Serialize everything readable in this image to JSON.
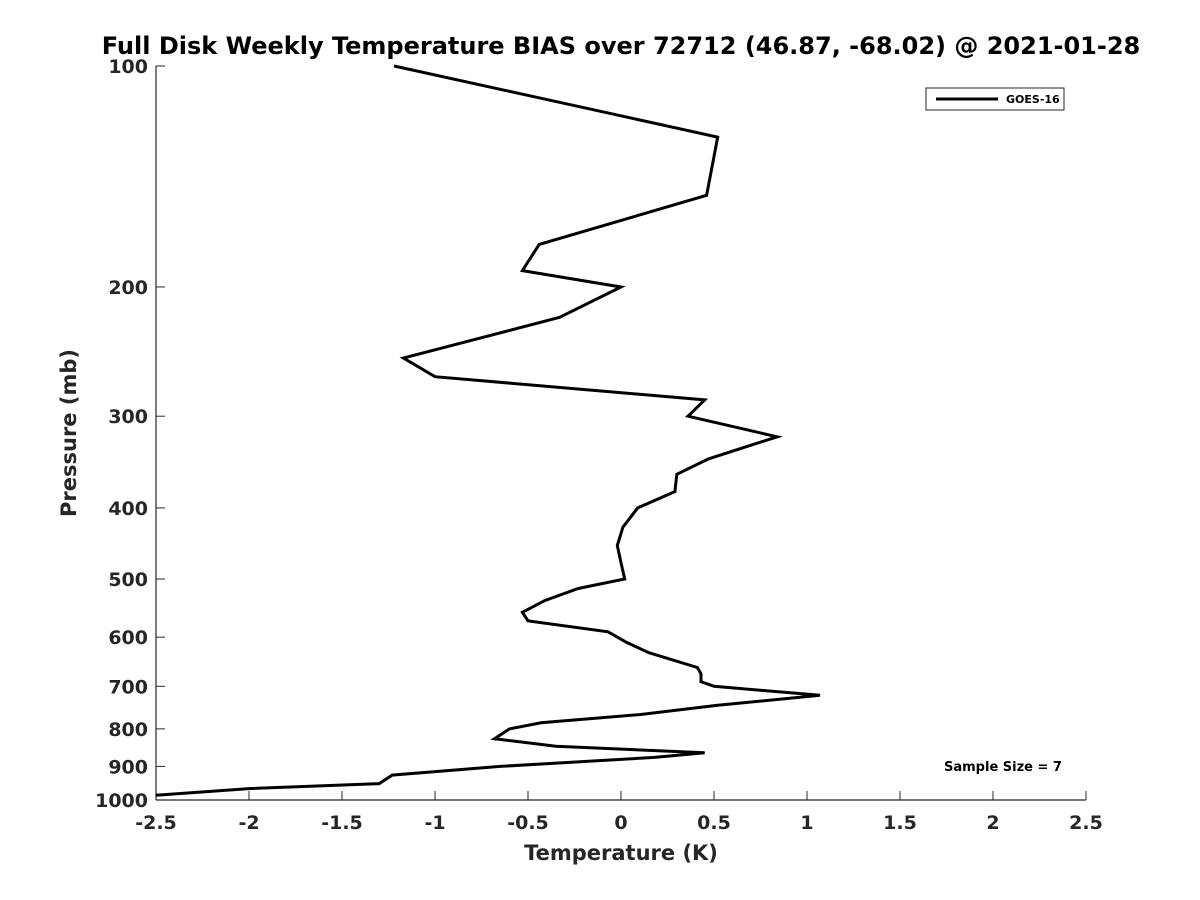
{
  "chart_data": {
    "type": "line",
    "title": "Full Disk Weekly Temperature BIAS over 72712 (46.87, -68.02) @ 2021-01-28",
    "xlabel": "Temperature (K)",
    "ylabel": "Pressure (mb)",
    "xlim": [
      -2.5,
      2.5
    ],
    "ylim": [
      1000,
      100
    ],
    "y_scale": "log",
    "x_ticks": [
      "-2.5",
      "-2",
      "-1.5",
      "-1",
      "-0.5",
      "0",
      "0.5",
      "1",
      "1.5",
      "2",
      "2.5"
    ],
    "x_tick_values": [
      -2.5,
      -2,
      -1.5,
      -1,
      -0.5,
      0,
      0.5,
      1,
      1.5,
      2,
      2.5
    ],
    "y_ticks": [
      "100",
      "200",
      "300",
      "400",
      "500",
      "600",
      "700",
      "800",
      "900",
      "1000"
    ],
    "y_tick_values": [
      100,
      200,
      300,
      400,
      500,
      600,
      700,
      800,
      900,
      1000
    ],
    "legend_position": "top-right",
    "series": [
      {
        "name": "GOES-16",
        "color": "#000000",
        "points": [
          {
            "t": -1.22,
            "p": 100
          },
          {
            "t": 0.52,
            "p": 125
          },
          {
            "t": 0.46,
            "p": 150
          },
          {
            "t": -0.44,
            "p": 175
          },
          {
            "t": -0.53,
            "p": 190
          },
          {
            "t": 0.0,
            "p": 200
          },
          {
            "t": -0.33,
            "p": 220
          },
          {
            "t": -1.17,
            "p": 250
          },
          {
            "t": -1.0,
            "p": 265
          },
          {
            "t": 0.45,
            "p": 285
          },
          {
            "t": 0.36,
            "p": 300
          },
          {
            "t": 0.84,
            "p": 320
          },
          {
            "t": 0.47,
            "p": 343
          },
          {
            "t": 0.3,
            "p": 360
          },
          {
            "t": 0.29,
            "p": 380
          },
          {
            "t": 0.09,
            "p": 400
          },
          {
            "t": 0.01,
            "p": 425
          },
          {
            "t": -0.02,
            "p": 450
          },
          {
            "t": 0.0,
            "p": 475
          },
          {
            "t": 0.02,
            "p": 500
          },
          {
            "t": -0.23,
            "p": 515
          },
          {
            "t": -0.41,
            "p": 535
          },
          {
            "t": -0.53,
            "p": 555
          },
          {
            "t": -0.5,
            "p": 570
          },
          {
            "t": -0.07,
            "p": 590
          },
          {
            "t": 0.03,
            "p": 610
          },
          {
            "t": 0.15,
            "p": 630
          },
          {
            "t": 0.41,
            "p": 660
          },
          {
            "t": 0.43,
            "p": 673
          },
          {
            "t": 0.43,
            "p": 690
          },
          {
            "t": 0.5,
            "p": 700
          },
          {
            "t": 1.07,
            "p": 720
          },
          {
            "t": 0.52,
            "p": 743
          },
          {
            "t": 0.1,
            "p": 765
          },
          {
            "t": -0.43,
            "p": 785
          },
          {
            "t": -0.6,
            "p": 800
          },
          {
            "t": -0.68,
            "p": 825
          },
          {
            "t": -0.35,
            "p": 845
          },
          {
            "t": 0.45,
            "p": 862
          },
          {
            "t": 0.18,
            "p": 875
          },
          {
            "t": -0.65,
            "p": 900
          },
          {
            "t": -1.23,
            "p": 925
          },
          {
            "t": -1.3,
            "p": 950
          },
          {
            "t": -2.0,
            "p": 965
          },
          {
            "t": -2.5,
            "p": 985
          }
        ]
      }
    ],
    "annotations": [
      "Sample Size = 7"
    ]
  }
}
